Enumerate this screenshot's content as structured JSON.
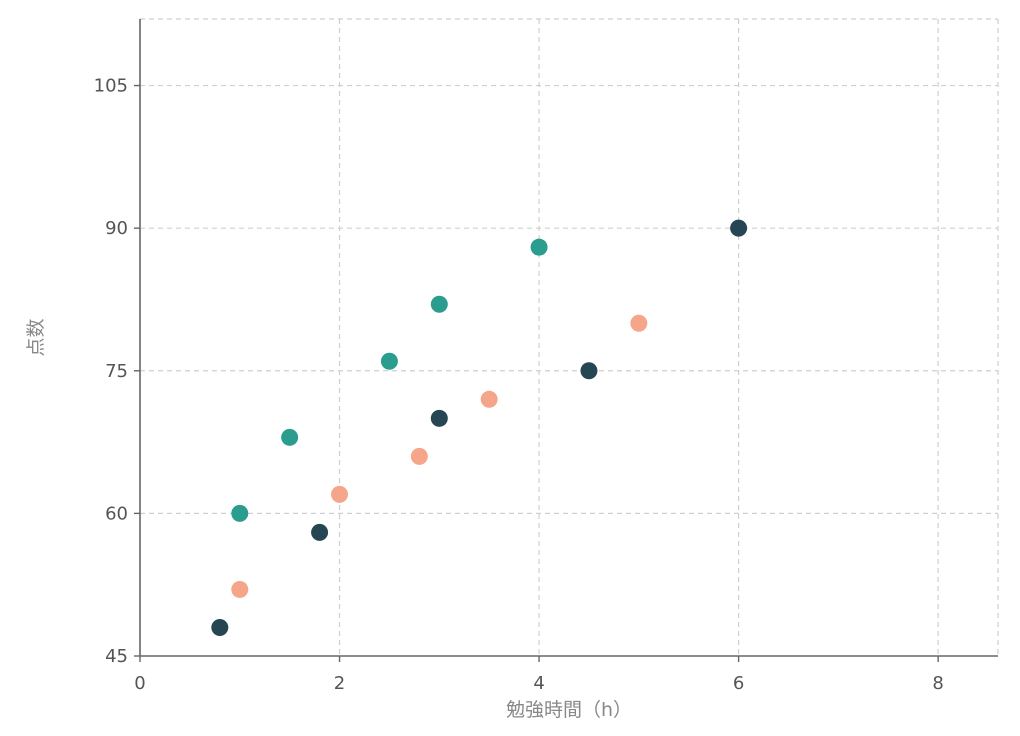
{
  "chart_data": {
    "type": "scatter",
    "title": "",
    "xlabel": "勉強時間（h）",
    "ylabel": "点数",
    "xlim": [
      0,
      8.6
    ],
    "ylim": [
      45,
      112
    ],
    "x_ticks": [
      0,
      2,
      4,
      6,
      8
    ],
    "y_ticks": [
      45,
      60,
      75,
      90,
      105
    ],
    "grid": true,
    "legend": "none",
    "series": [
      {
        "color": "#2a9d8f",
        "points": [
          {
            "x": 1.0,
            "y": 60
          },
          {
            "x": 1.5,
            "y": 68
          },
          {
            "x": 2.5,
            "y": 76
          },
          {
            "x": 3.0,
            "y": 82
          },
          {
            "x": 4.0,
            "y": 88
          }
        ]
      },
      {
        "color": "#f4a58a",
        "points": [
          {
            "x": 1.0,
            "y": 52
          },
          {
            "x": 2.0,
            "y": 62
          },
          {
            "x": 2.8,
            "y": 66
          },
          {
            "x": 3.5,
            "y": 72
          },
          {
            "x": 5.0,
            "y": 80
          }
        ]
      },
      {
        "color": "#264653",
        "points": [
          {
            "x": 0.8,
            "y": 48
          },
          {
            "x": 1.8,
            "y": 58
          },
          {
            "x": 3.0,
            "y": 70
          },
          {
            "x": 4.5,
            "y": 75
          },
          {
            "x": 6.0,
            "y": 90
          }
        ]
      }
    ]
  }
}
